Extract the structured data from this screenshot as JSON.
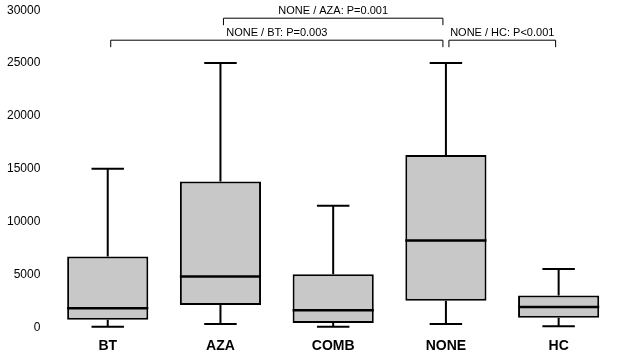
{
  "chart_data": {
    "type": "boxplot",
    "categories": [
      "BT",
      "AZA",
      "COMB",
      "NONE",
      "HC"
    ],
    "min": [
      50,
      300,
      50,
      300,
      100
    ],
    "q1": [
      700,
      2100,
      400,
      2500,
      900
    ],
    "median": [
      1800,
      4800,
      1600,
      8200,
      1900
    ],
    "q3": [
      6700,
      13800,
      5000,
      16300,
      3000
    ],
    "max": [
      15000,
      25000,
      11500,
      25000,
      5500
    ],
    "color": "#c8c8c8",
    "ylim": [
      0,
      30000
    ],
    "yticks": [
      0,
      5000,
      10000,
      15000,
      20000,
      25000,
      30000
    ],
    "grid": false,
    "annotations": [
      {
        "text": "NONE / BT: P=0.003",
        "from": "BT",
        "to": "NONE"
      },
      {
        "text": "NONE / AZA: P=0.001",
        "from": "AZA",
        "to": "NONE"
      },
      {
        "text": "NONE / HC: P<0.001",
        "from": "NONE",
        "to": "HC"
      }
    ]
  }
}
